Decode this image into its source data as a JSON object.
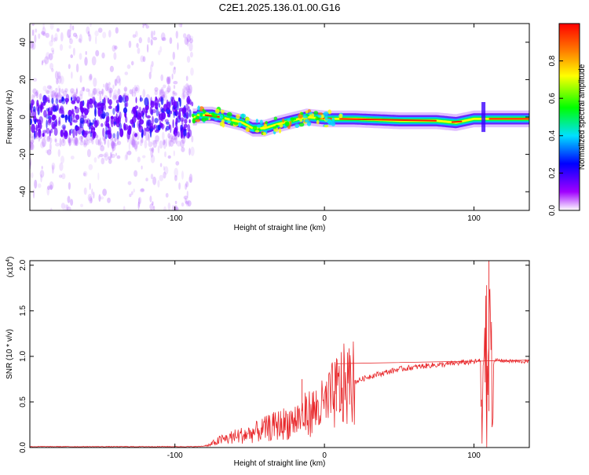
{
  "title": "C2E1.2025.136.01.00.G16",
  "chart_data": [
    {
      "type": "heatmap",
      "xlabel": "Height of straight line (km)",
      "ylabel": "Frequency (Hz)",
      "xlim": [
        -197,
        137
      ],
      "ylim": [
        -50,
        50
      ],
      "xticks": [
        -100,
        0,
        100
      ],
      "yticks": [
        -40,
        -20,
        0,
        20,
        40
      ],
      "colorbar": {
        "label": "Normalized spectral amplitude",
        "range": [
          0,
          1
        ],
        "ticks": [
          0.0,
          0.2,
          0.4,
          0.6,
          0.8
        ],
        "colors": [
          "#ffffff",
          "#a000ff",
          "#0000ff",
          "#00e0ff",
          "#00ff00",
          "#ffff00",
          "#ff8000",
          "#ff0000"
        ]
      },
      "ridge": [
        {
          "x": -85,
          "y": 1
        },
        {
          "x": -75,
          "y": 1
        },
        {
          "x": -65,
          "y": -1
        },
        {
          "x": -55,
          "y": -3
        },
        {
          "x": -48,
          "y": -6
        },
        {
          "x": -40,
          "y": -6
        },
        {
          "x": -32,
          "y": -4
        },
        {
          "x": -22,
          "y": -2
        },
        {
          "x": -12,
          "y": 0
        },
        {
          "x": 0,
          "y": -1
        },
        {
          "x": 20,
          "y": -1
        },
        {
          "x": 50,
          "y": -2
        },
        {
          "x": 75,
          "y": -2
        },
        {
          "x": 88,
          "y": -3
        },
        {
          "x": 100,
          "y": -1
        },
        {
          "x": 106,
          "y": -1
        },
        {
          "x": 137,
          "y": -1
        }
      ],
      "noise_region_xmax": -88
    },
    {
      "type": "line",
      "xlabel": "Height of straight line (km)",
      "ylabel": "SNR (10 * v/v)",
      "multiplier": "(x10",
      "multiplier_exp": "4",
      "multiplier_close": ")",
      "xlim": [
        -197,
        137
      ],
      "ylim": [
        0,
        2.05
      ],
      "xticks": [
        -100,
        0,
        100
      ],
      "yticks": [
        0.0,
        0.5,
        1.0,
        1.5,
        2.0
      ],
      "color": "#e8282b",
      "series": [
        {
          "x": [
            -197,
            -150,
            -100,
            -85,
            -78,
            -70,
            -60,
            -50,
            -40,
            -30,
            -20,
            -10,
            -5,
            0,
            5,
            10,
            20,
            30,
            40,
            50,
            60,
            70,
            80,
            90,
            100,
            105,
            108,
            110,
            112,
            115,
            120,
            137
          ],
          "values": [
            0.01,
            0.01,
            0.01,
            0.01,
            0.02,
            0.08,
            0.12,
            0.15,
            0.2,
            0.25,
            0.3,
            0.38,
            0.42,
            0.45,
            0.55,
            0.65,
            0.72,
            0.78,
            0.82,
            0.86,
            0.88,
            0.9,
            0.91,
            0.93,
            0.94,
            0.95,
            0.1,
            1.6,
            0.9,
            0.96,
            0.95,
            0.94
          ]
        }
      ]
    }
  ]
}
